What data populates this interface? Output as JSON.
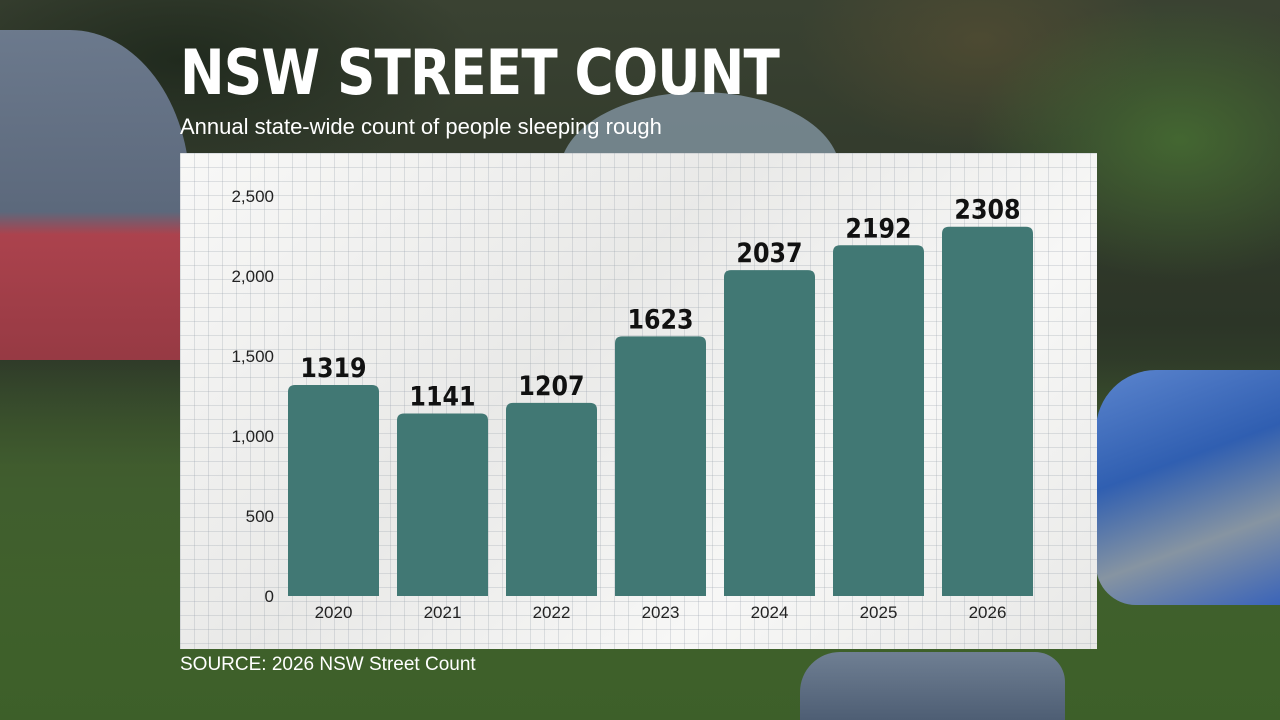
{
  "header": {
    "title": "NSW STREET COUNT",
    "subtitle": "Annual state-wide count of people sleeping rough"
  },
  "footer": {
    "source": "SOURCE: 2026 NSW Street Count"
  },
  "colors": {
    "bar": "#417874",
    "panel": "#f1f1ef",
    "axis_text": "#222222"
  },
  "chart_data": {
    "type": "bar",
    "categories": [
      "2020",
      "2021",
      "2022",
      "2023",
      "2024",
      "2025",
      "2026"
    ],
    "values": [
      1319,
      1141,
      1207,
      1623,
      2037,
      2192,
      2308
    ],
    "data_labels": [
      "1319",
      "1141",
      "1207",
      "1623",
      "2037",
      "2192",
      "2308"
    ],
    "ylim": [
      0,
      2500
    ],
    "yticks": [
      0,
      500,
      1000,
      1500,
      2000,
      2500
    ],
    "ytick_labels": [
      "0",
      "500",
      "1,000",
      "1,500",
      "2,000",
      "2,500"
    ],
    "grid": true,
    "legend": "none"
  }
}
